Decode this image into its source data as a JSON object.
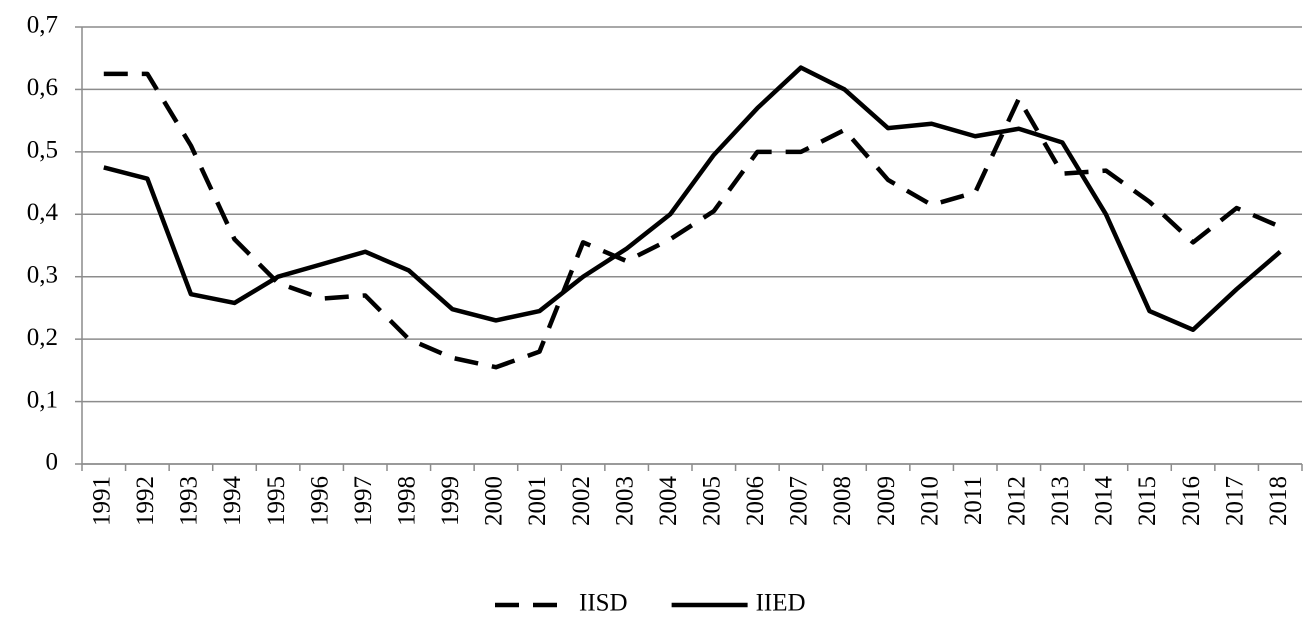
{
  "chart_data": {
    "type": "line",
    "categories": [
      "1991",
      "1992",
      "1993",
      "1994",
      "1995",
      "1996",
      "1997",
      "1998",
      "1999",
      "2000",
      "2001",
      "2002",
      "2003",
      "2004",
      "2005",
      "2006",
      "2007",
      "2008",
      "2009",
      "2010",
      "2011",
      "2012",
      "2013",
      "2014",
      "2015",
      "2016",
      "2017",
      "2018"
    ],
    "series": [
      {
        "name": "IISD",
        "color": "#000000",
        "dashed": true,
        "values": [
          0.625,
          0.625,
          0.51,
          0.36,
          0.29,
          0.265,
          0.27,
          0.2,
          0.17,
          0.155,
          0.18,
          0.355,
          0.325,
          0.36,
          0.405,
          0.5,
          0.5,
          0.535,
          0.455,
          0.415,
          0.435,
          0.585,
          0.465,
          0.47,
          0.42,
          0.355,
          0.41,
          0.38
        ]
      },
      {
        "name": "IIED",
        "color": "#000000",
        "dashed": false,
        "values": [
          0.475,
          0.457,
          0.272,
          0.258,
          0.3,
          0.32,
          0.34,
          0.31,
          0.248,
          0.23,
          0.245,
          0.3,
          0.345,
          0.4,
          0.495,
          0.57,
          0.635,
          0.6,
          0.538,
          0.545,
          0.525,
          0.537,
          0.515,
          0.4,
          0.245,
          0.215,
          0.28,
          0.34
        ]
      }
    ],
    "ylim": [
      0,
      0.7
    ],
    "yticks": [
      0,
      {
        "value": 0.1,
        "label": "0,1"
      },
      {
        "value": 0.2,
        "label": "0,2"
      },
      {
        "value": 0.3,
        "label": "0,3"
      },
      {
        "value": 0.4,
        "label": "0,4"
      },
      {
        "value": 0.5,
        "label": "0,5"
      },
      {
        "value": 0.6,
        "label": "0,6"
      },
      {
        "value": 0.7,
        "label": "0,7"
      }
    ],
    "grid": true,
    "legend": "bottom"
  }
}
